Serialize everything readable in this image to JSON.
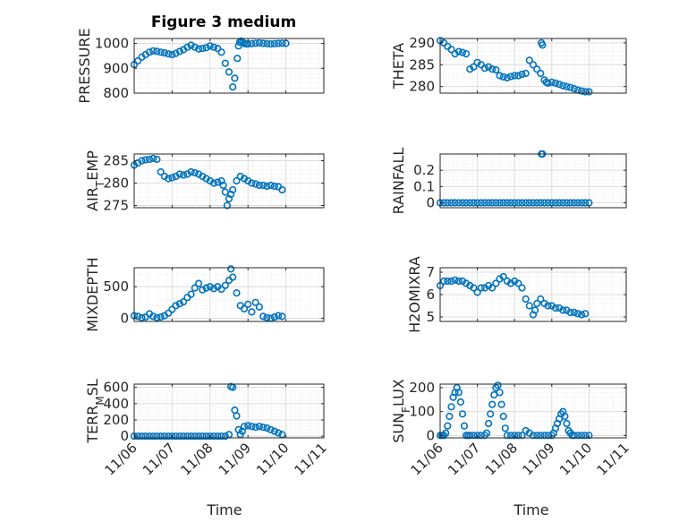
{
  "figure": {
    "title": "Figure 3 medium"
  },
  "colors": {
    "series": "#0072BD",
    "axis": "#262626",
    "grid": "#dcdcdc"
  },
  "chart_data": [
    {
      "type": "scatter",
      "ylabel": "PRESSURE",
      "ylim": [
        800,
        1020
      ],
      "yticks": [
        800,
        900,
        1000
      ],
      "xlim": [
        0,
        5
      ],
      "grid": true,
      "show_xticklabels": false,
      "series": [
        {
          "x": [
            0.0,
            0.1,
            0.2,
            0.3,
            0.4,
            0.5,
            0.6,
            0.7,
            0.8,
            0.9,
            1.0,
            1.1,
            1.2,
            1.3,
            1.4,
            1.5,
            1.6,
            1.7,
            1.8,
            1.9,
            2.0,
            2.1,
            2.2,
            2.3,
            2.4,
            2.5,
            2.6,
            2.65,
            2.72,
            2.75,
            2.78,
            2.82,
            2.86,
            2.9,
            2.95,
            3.0,
            3.1,
            3.2,
            3.3,
            3.4,
            3.5,
            3.6,
            3.7,
            3.8,
            3.9,
            4.0
          ],
          "y": [
            915,
            930,
            945,
            955,
            965,
            970,
            968,
            965,
            962,
            958,
            955,
            960,
            968,
            975,
            985,
            993,
            985,
            978,
            980,
            983,
            990,
            985,
            980,
            965,
            920,
            885,
            825,
            860,
            940,
            990,
            1005,
            1010,
            1005,
            1000,
            998,
            998,
            999,
            1001,
            1002,
            1000,
            999,
            998,
            999,
            1000,
            1001,
            1000
          ]
        }
      ]
    },
    {
      "type": "scatter",
      "ylabel": "THETA",
      "ylim": [
        278.5,
        291
      ],
      "yticks": [
        280,
        285,
        290
      ],
      "xlim": [
        0,
        5
      ],
      "grid": true,
      "show_xticklabels": false,
      "series": [
        {
          "x": [
            0.0,
            0.1,
            0.2,
            0.3,
            0.4,
            0.5,
            0.6,
            0.7,
            0.8,
            0.9,
            1.0,
            1.1,
            1.2,
            1.3,
            1.4,
            1.5,
            1.6,
            1.7,
            1.8,
            1.9,
            2.0,
            2.1,
            2.2,
            2.3,
            2.4,
            2.5,
            2.6,
            2.7,
            2.72,
            2.75,
            2.8,
            2.85,
            2.9,
            3.0,
            3.1,
            3.2,
            3.3,
            3.4,
            3.5,
            3.6,
            3.7,
            3.8,
            3.9,
            4.0
          ],
          "y": [
            290.5,
            290.0,
            289.2,
            288.5,
            287.5,
            288.0,
            287.8,
            287.5,
            284.0,
            284.5,
            285.5,
            285.0,
            284.2,
            284.5,
            284.0,
            283.8,
            282.5,
            282.2,
            282.0,
            282.3,
            282.5,
            282.5,
            282.8,
            283.0,
            286.0,
            285.0,
            284.0,
            283.0,
            290.0,
            289.5,
            281.5,
            281.0,
            280.8,
            281.0,
            280.8,
            280.5,
            280.2,
            280.0,
            279.8,
            279.5,
            279.2,
            279.0,
            278.8,
            278.8
          ]
        }
      ]
    },
    {
      "type": "scatter",
      "ylabel": "AIR_TEMP",
      "ylim": [
        274.5,
        286.5
      ],
      "yticks": [
        275,
        280,
        285
      ],
      "xlim": [
        0,
        5
      ],
      "grid": true,
      "show_xticklabels": false,
      "series": [
        {
          "x": [
            0.0,
            0.1,
            0.2,
            0.3,
            0.4,
            0.5,
            0.6,
            0.7,
            0.8,
            0.9,
            1.0,
            1.1,
            1.2,
            1.3,
            1.4,
            1.5,
            1.6,
            1.7,
            1.8,
            1.9,
            2.0,
            2.1,
            2.2,
            2.3,
            2.35,
            2.4,
            2.45,
            2.5,
            2.55,
            2.6,
            2.7,
            2.8,
            2.9,
            3.0,
            3.1,
            3.2,
            3.3,
            3.4,
            3.5,
            3.6,
            3.7,
            3.8,
            3.9
          ],
          "y": [
            284.0,
            284.5,
            285.0,
            285.2,
            285.3,
            285.5,
            285.3,
            282.5,
            281.5,
            281.0,
            281.2,
            281.5,
            282.0,
            281.8,
            282.0,
            282.5,
            282.3,
            282.0,
            281.5,
            281.0,
            280.5,
            280.0,
            280.2,
            280.5,
            279.5,
            278.0,
            275.0,
            276.5,
            277.5,
            278.5,
            280.5,
            281.5,
            281.0,
            280.5,
            280.0,
            279.8,
            279.5,
            279.5,
            279.3,
            279.5,
            279.3,
            279.2,
            278.5
          ]
        }
      ]
    },
    {
      "type": "scatter",
      "ylabel": "RAINFALL",
      "ylim": [
        -0.03,
        0.3
      ],
      "yticks": [
        0,
        0.1,
        0.2
      ],
      "xlim": [
        0,
        5
      ],
      "grid": true,
      "show_xticklabels": false,
      "series": [
        {
          "x": [
            0.0,
            0.1,
            0.2,
            0.3,
            0.4,
            0.5,
            0.6,
            0.7,
            0.8,
            0.9,
            1.0,
            1.1,
            1.2,
            1.3,
            1.4,
            1.5,
            1.6,
            1.7,
            1.8,
            1.9,
            2.0,
            2.1,
            2.2,
            2.3,
            2.4,
            2.5,
            2.6,
            2.7,
            2.72,
            2.75,
            2.8,
            2.9,
            3.0,
            3.1,
            3.2,
            3.3,
            3.4,
            3.5,
            3.6,
            3.7,
            3.8,
            3.9,
            4.0
          ],
          "y": [
            0,
            0,
            0,
            0,
            0,
            0,
            0,
            0,
            0,
            0,
            0,
            0,
            0,
            0,
            0,
            0,
            0,
            0,
            0,
            0,
            0,
            0,
            0,
            0,
            0,
            0,
            0,
            0,
            0.3,
            0.3,
            0,
            0,
            0,
            0,
            0,
            0,
            0,
            0,
            0,
            0,
            0,
            0,
            0
          ]
        }
      ]
    },
    {
      "type": "scatter",
      "ylabel": "MIXDEPTH",
      "ylim": [
        -50,
        800
      ],
      "yticks": [
        0,
        500
      ],
      "xlim": [
        0,
        5
      ],
      "grid": true,
      "show_xticklabels": false,
      "series": [
        {
          "x": [
            0.0,
            0.1,
            0.2,
            0.3,
            0.4,
            0.5,
            0.6,
            0.7,
            0.8,
            0.9,
            1.0,
            1.1,
            1.2,
            1.3,
            1.4,
            1.5,
            1.6,
            1.7,
            1.8,
            1.9,
            2.0,
            2.1,
            2.2,
            2.3,
            2.4,
            2.5,
            2.55,
            2.6,
            2.7,
            2.8,
            2.9,
            3.0,
            3.1,
            3.2,
            3.3,
            3.4,
            3.5,
            3.6,
            3.7,
            3.8,
            3.9
          ],
          "y": [
            40,
            30,
            10,
            20,
            70,
            30,
            10,
            20,
            40,
            80,
            140,
            200,
            230,
            260,
            330,
            380,
            480,
            550,
            450,
            480,
            500,
            470,
            500,
            460,
            520,
            600,
            780,
            650,
            400,
            200,
            150,
            220,
            100,
            250,
            180,
            30,
            10,
            0,
            20,
            40,
            30
          ]
        }
      ]
    },
    {
      "type": "scatter",
      "ylabel": "H2OMIXRA",
      "ylim": [
        4.8,
        7.2
      ],
      "yticks": [
        5,
        6,
        7
      ],
      "xlim": [
        0,
        5
      ],
      "grid": true,
      "show_xticklabels": false,
      "series": [
        {
          "x": [
            0.0,
            0.1,
            0.2,
            0.3,
            0.4,
            0.5,
            0.6,
            0.7,
            0.8,
            0.9,
            1.0,
            1.1,
            1.2,
            1.3,
            1.4,
            1.5,
            1.6,
            1.7,
            1.8,
            1.9,
            2.0,
            2.1,
            2.2,
            2.3,
            2.4,
            2.5,
            2.55,
            2.6,
            2.7,
            2.8,
            2.9,
            3.0,
            3.1,
            3.2,
            3.3,
            3.4,
            3.5,
            3.6,
            3.7,
            3.8,
            3.9
          ],
          "y": [
            6.4,
            6.6,
            6.6,
            6.6,
            6.65,
            6.6,
            6.6,
            6.5,
            6.4,
            6.3,
            6.1,
            6.3,
            6.3,
            6.4,
            6.3,
            6.5,
            6.7,
            6.8,
            6.6,
            6.5,
            6.6,
            6.5,
            6.3,
            5.8,
            5.5,
            5.1,
            5.3,
            5.6,
            5.8,
            5.6,
            5.5,
            5.5,
            5.4,
            5.4,
            5.3,
            5.3,
            5.2,
            5.2,
            5.15,
            5.1,
            5.15
          ]
        }
      ]
    },
    {
      "type": "scatter",
      "ylabel": "TERR_MSL",
      "ylim": [
        -20,
        640
      ],
      "yticks": [
        0,
        200,
        400,
        600
      ],
      "xlim": [
        0,
        5
      ],
      "grid": true,
      "show_xticklabels": false,
      "series": [
        {
          "x": [
            0.0,
            0.1,
            0.2,
            0.3,
            0.4,
            0.5,
            0.6,
            0.7,
            0.8,
            0.9,
            1.0,
            1.1,
            1.2,
            1.3,
            1.4,
            1.5,
            1.6,
            1.7,
            1.8,
            1.9,
            2.0,
            2.1,
            2.2,
            2.3,
            2.4,
            2.5,
            2.55,
            2.6,
            2.65,
            2.7,
            2.75,
            2.8,
            2.85,
            2.9,
            3.0,
            3.1,
            3.2,
            3.3,
            3.4,
            3.5,
            3.6,
            3.7,
            3.8,
            3.9
          ],
          "y": [
            0,
            0,
            0,
            0,
            0,
            0,
            0,
            0,
            0,
            0,
            0,
            0,
            0,
            0,
            0,
            0,
            0,
            0,
            0,
            0,
            0,
            0,
            0,
            0,
            0,
            20,
            610,
            600,
            320,
            250,
            80,
            20,
            60,
            120,
            130,
            120,
            110,
            120,
            110,
            100,
            80,
            60,
            40,
            20
          ]
        }
      ]
    },
    {
      "type": "scatter",
      "ylabel": "SUN_FLUX",
      "ylim": [
        -10,
        215
      ],
      "yticks": [
        0,
        100,
        200
      ],
      "xlim": [
        0,
        5
      ],
      "grid": true,
      "show_xticklabels": true,
      "series": [
        {
          "x": [
            0.0,
            0.05,
            0.1,
            0.15,
            0.2,
            0.25,
            0.3,
            0.35,
            0.4,
            0.45,
            0.5,
            0.55,
            0.6,
            0.65,
            0.7,
            0.75,
            0.8,
            0.9,
            1.0,
            1.1,
            1.2,
            1.25,
            1.3,
            1.35,
            1.4,
            1.45,
            1.5,
            1.55,
            1.6,
            1.65,
            1.7,
            1.75,
            1.8,
            1.9,
            2.0,
            2.1,
            2.2,
            2.3,
            2.4,
            2.5,
            2.6,
            2.7,
            2.8,
            2.9,
            3.0,
            3.05,
            3.1,
            3.15,
            3.2,
            3.25,
            3.3,
            3.35,
            3.4,
            3.45,
            3.5,
            3.55,
            3.6,
            3.7,
            3.8,
            3.9,
            4.0
          ],
          "y": [
            0,
            0,
            0,
            10,
            40,
            80,
            120,
            160,
            180,
            200,
            180,
            140,
            90,
            40,
            0,
            0,
            0,
            0,
            0,
            0,
            0,
            10,
            50,
            90,
            130,
            170,
            200,
            210,
            180,
            130,
            80,
            30,
            0,
            0,
            0,
            0,
            0,
            20,
            10,
            0,
            0,
            0,
            0,
            0,
            0,
            10,
            30,
            50,
            70,
            90,
            100,
            80,
            50,
            20,
            10,
            0,
            0,
            0,
            0,
            0,
            0
          ]
        }
      ]
    }
  ],
  "xticklabels": [
    "11/06",
    "11/07",
    "11/08",
    "11/09",
    "11/10",
    "11/11"
  ],
  "xlabels": [
    "Time",
    "Time"
  ]
}
